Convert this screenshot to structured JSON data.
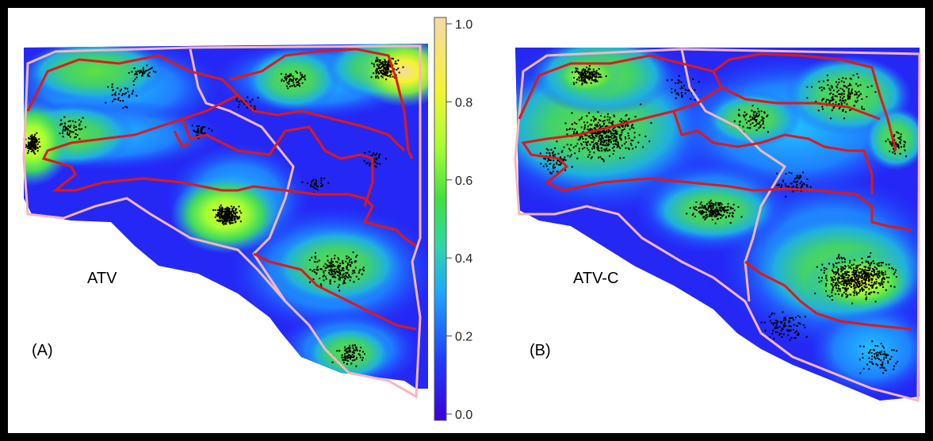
{
  "figure": {
    "panels": [
      {
        "id": "A",
        "letter": "(A)",
        "label": "ATV"
      },
      {
        "id": "B",
        "letter": "(B)",
        "label": "ATV-C"
      }
    ],
    "colorbar": {
      "ticks": [
        "0.0",
        "0.2",
        "0.4",
        "0.6",
        "0.8",
        "1.0"
      ],
      "min": 0.0,
      "max": 1.0,
      "colors": [
        "#3a00d8",
        "#1f3cff",
        "#1fa8ff",
        "#30d8a0",
        "#40e040",
        "#a6ff30",
        "#f4f430",
        "#f6d8a8"
      ]
    },
    "colors": {
      "management_boundary": "#e01818",
      "outer_boundary": "#f4b6c2",
      "points": "#000000"
    }
  }
}
